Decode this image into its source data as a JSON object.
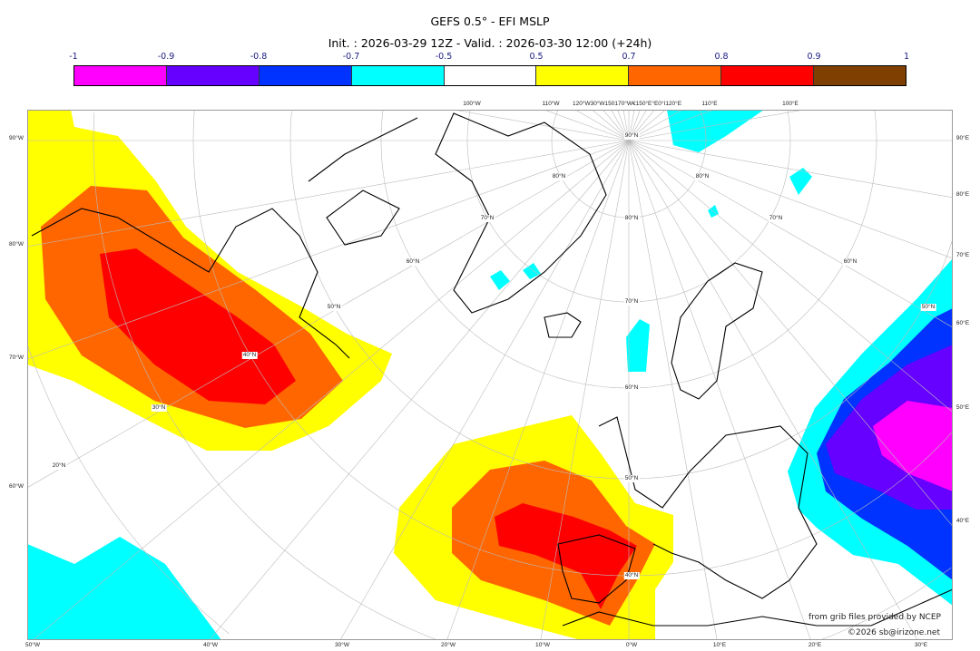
{
  "header": {
    "title": "GEFS 0.5° - EFI MSLP",
    "subtitle": "Init. : 2026-03-29 12Z - Valid. : 2026-03-30 12:00 (+24h)"
  },
  "colorbar": {
    "ticks": [
      "-1",
      "-0.9",
      "-0.8",
      "-0.7",
      "-0.5",
      "0.5",
      "0.7",
      "0.8",
      "0.9",
      "1"
    ],
    "colors": [
      "#ff00ff",
      "#6600ff",
      "#0033ff",
      "#00ffff",
      "#ffffff",
      "#ffff00",
      "#ff6600",
      "#ff0000",
      "#7f3f00"
    ]
  },
  "map": {
    "left_labels": [
      "90°W",
      "80°W",
      "70°W",
      "60°W"
    ],
    "right_labels": [
      "90°E",
      "80°E",
      "70°E",
      "60°E",
      "50°E",
      "40°E"
    ],
    "bottom_labels": [
      "50°W",
      "40°W",
      "30°W",
      "20°W",
      "10°W",
      "0°W",
      "10°E",
      "20°E",
      "30°E"
    ],
    "top_labels": [
      "100°W",
      "110°W",
      "120°W30°W150170°W€150°E°E0°I120°E",
      "110°E",
      "100°E"
    ],
    "lat_labels": [
      "90°N",
      "80°N",
      "80°N",
      "80°N",
      "70°N",
      "70°N",
      "70°N",
      "60°N",
      "60°N",
      "60°N",
      "50°N",
      "50°N",
      "50°N",
      "40°N",
      "40°N",
      "30°N",
      "20°N"
    ]
  },
  "credits": {
    "source": "from grib files provided by NCEP",
    "copyright": "©2026 sb@irizone.net"
  }
}
